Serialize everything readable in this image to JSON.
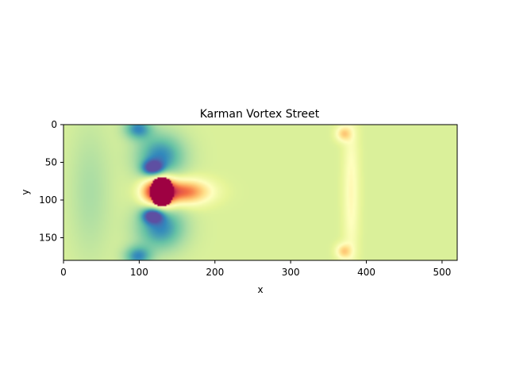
{
  "chart_data": {
    "type": "heatmap",
    "title": "Karman Vortex Street",
    "xlabel": "x",
    "ylabel": "y",
    "xlim": [
      0,
      520
    ],
    "ylim": [
      180,
      0
    ],
    "y_axis_inverted": true,
    "x_ticks": [
      0,
      100,
      200,
      300,
      400,
      500
    ],
    "y_ticks": [
      0,
      50,
      100,
      150
    ],
    "colormap": "Spectral_r",
    "grid": false,
    "legend": "none",
    "colorbar": false,
    "background_value": 0.38,
    "features": [
      {
        "label": "obstacle",
        "x": 130,
        "y": 89,
        "rx": 16,
        "ry": 20,
        "value": 1.0
      },
      {
        "label": "wake",
        "x": 158,
        "y": 89,
        "rx": 34,
        "ry": 16,
        "value": 0.82
      },
      {
        "label": "upper vortex",
        "x": 128,
        "y": 42,
        "rx": 32,
        "ry": 30,
        "value": 0.1
      },
      {
        "label": "lower vortex",
        "x": 128,
        "y": 136,
        "rx": 32,
        "ry": 30,
        "value": 0.1
      },
      {
        "label": "upper inner vortex",
        "x": 118,
        "y": 58,
        "rx": 14,
        "ry": 10,
        "value": 0.05
      },
      {
        "label": "lower inner vortex",
        "x": 118,
        "y": 120,
        "rx": 14,
        "ry": 10,
        "value": 0.05
      },
      {
        "label": "top vortex core",
        "x": 98,
        "y": 5,
        "rx": 18,
        "ry": 14,
        "value": 0.12
      },
      {
        "label": "bottom vortex core",
        "x": 98,
        "y": 175,
        "rx": 18,
        "ry": 14,
        "value": 0.12
      },
      {
        "label": "upstream ring",
        "x": 35,
        "y": 89,
        "rx": 28,
        "ry": 90,
        "value": 0.3
      },
      {
        "label": "front halo",
        "x": 112,
        "y": 89,
        "rx": 14,
        "ry": 16,
        "value": 0.62
      },
      {
        "label": "pressure front",
        "x": 380,
        "y": 89,
        "rx": 10,
        "ry": 100,
        "value": 0.52
      },
      {
        "label": "top hot spot",
        "x": 370,
        "y": 12,
        "rx": 10,
        "ry": 10,
        "value": 0.62
      },
      {
        "label": "bottom hot spot",
        "x": 370,
        "y": 168,
        "rx": 10,
        "ry": 10,
        "value": 0.62
      }
    ]
  }
}
